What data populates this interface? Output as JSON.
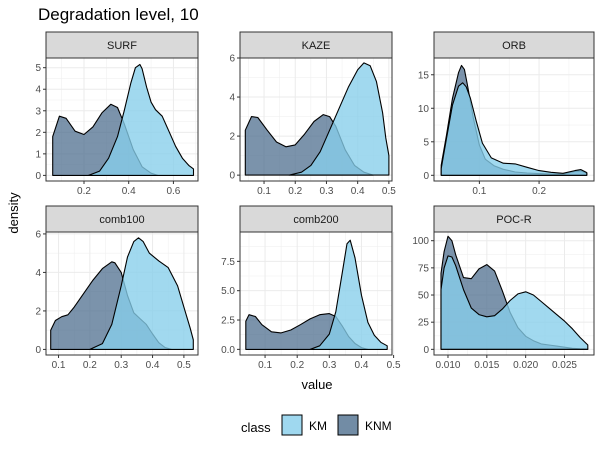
{
  "title": "Degradation level, 10",
  "chart_data": {
    "type": "area",
    "title": "Degradation level, 10",
    "xlabel": "value",
    "ylabel": "density",
    "grid": true,
    "legend": {
      "title": "class",
      "position": "bottom",
      "entries": [
        {
          "name": "KM",
          "color": "#87CEEB"
        },
        {
          "name": "KNM",
          "color": "#4F6F8F"
        }
      ]
    },
    "panels": [
      {
        "name": "SURF",
        "xlim": [
          0.03,
          0.71
        ],
        "ylim": [
          -0.26,
          5.45
        ],
        "xticks": [
          0.2,
          0.4,
          0.6
        ],
        "xtick_labels": [
          "0.2",
          "0.4",
          "0.6"
        ],
        "yticks": [
          0,
          1,
          2,
          3,
          4,
          5
        ],
        "ytick_labels": [
          "0",
          "1",
          "2",
          "3",
          "4",
          "5"
        ],
        "series": [
          {
            "name": "KNM",
            "x": [
              0.06,
              0.09,
              0.12,
              0.16,
              0.2,
              0.24,
              0.28,
              0.32,
              0.35,
              0.38,
              0.42,
              0.46,
              0.5,
              0.53
            ],
            "y": [
              1.8,
              2.75,
              2.65,
              2.05,
              1.9,
              2.25,
              2.9,
              3.3,
              3.15,
              2.4,
              1.2,
              0.4,
              0.1,
              0.0
            ]
          },
          {
            "name": "KM",
            "x": [
              0.22,
              0.27,
              0.31,
              0.35,
              0.38,
              0.41,
              0.43,
              0.45,
              0.46,
              0.48,
              0.5,
              0.52,
              0.55,
              0.58,
              0.61,
              0.64,
              0.67,
              0.69
            ],
            "y": [
              0.0,
              0.2,
              0.8,
              1.8,
              3.0,
              4.3,
              5.0,
              5.15,
              4.95,
              4.1,
              3.4,
              3.05,
              2.75,
              2.05,
              1.35,
              0.8,
              0.45,
              0.3
            ]
          }
        ]
      },
      {
        "name": "KAZE",
        "xlim": [
          0.023,
          0.51
        ],
        "ylim": [
          -0.3,
          6.0
        ],
        "xticks": [
          0.1,
          0.2,
          0.3,
          0.4,
          0.5
        ],
        "xtick_labels": [
          "0.1",
          "0.2",
          "0.3",
          "0.4",
          "0.5"
        ],
        "yticks": [
          0,
          2,
          4,
          6
        ],
        "ytick_labels": [
          "0",
          "2",
          "4",
          "6"
        ],
        "series": [
          {
            "name": "KNM",
            "x": [
              0.04,
              0.06,
              0.08,
              0.11,
              0.14,
              0.17,
              0.2,
              0.23,
              0.26,
              0.29,
              0.31,
              0.33,
              0.36,
              0.39,
              0.42,
              0.45
            ],
            "y": [
              2.3,
              3.0,
              2.95,
              2.3,
              1.7,
              1.45,
              1.55,
              2.1,
              2.75,
              3.1,
              3.0,
              2.5,
              1.3,
              0.5,
              0.15,
              0.0
            ]
          },
          {
            "name": "KM",
            "x": [
              0.18,
              0.22,
              0.25,
              0.28,
              0.31,
              0.34,
              0.37,
              0.4,
              0.42,
              0.44,
              0.46,
              0.48,
              0.49,
              0.5
            ],
            "y": [
              0.0,
              0.15,
              0.5,
              1.2,
              2.3,
              3.4,
              4.5,
              5.4,
              5.75,
              5.6,
              4.8,
              3.2,
              1.9,
              1.0
            ]
          }
        ]
      },
      {
        "name": "ORB",
        "xlim": [
          0.024,
          0.292
        ],
        "ylim": [
          -0.85,
          17.5
        ],
        "xticks": [
          0.1,
          0.2
        ],
        "xtick_labels": [
          "0.1",
          "0.2"
        ],
        "yticks": [
          0,
          5,
          10,
          15
        ],
        "ytick_labels": [
          "0",
          "5",
          "10",
          "15"
        ],
        "series": [
          {
            "name": "KNM",
            "x": [
              0.036,
              0.045,
              0.055,
              0.065,
              0.07,
              0.075,
              0.08,
              0.09,
              0.1,
              0.11,
              0.125,
              0.14,
              0.16,
              0.18,
              0.2,
              0.22,
              0.24,
              0.26,
              0.27,
              0.28
            ],
            "y": [
              1.5,
              6.0,
              11.5,
              15.3,
              16.4,
              15.8,
              13.5,
              8.5,
              4.5,
              2.4,
              1.4,
              0.9,
              0.5,
              0.35,
              0.25,
              0.2,
              0.15,
              0.6,
              0.65,
              0.3
            ]
          },
          {
            "name": "KM",
            "x": [
              0.036,
              0.045,
              0.055,
              0.065,
              0.072,
              0.078,
              0.085,
              0.095,
              0.105,
              0.12,
              0.14,
              0.16,
              0.18,
              0.2,
              0.22,
              0.24,
              0.26,
              0.27,
              0.28
            ],
            "y": [
              1.0,
              5.5,
              10.5,
              13.3,
              13.8,
              13.2,
              11.5,
              8.0,
              4.8,
              2.6,
              1.8,
              1.7,
              1.2,
              0.7,
              0.45,
              0.3,
              0.7,
              0.85,
              0.4
            ]
          }
        ]
      },
      {
        "name": "comb100",
        "xlim": [
          0.06,
          0.545
        ],
        "ylim": [
          -0.29,
          6.1
        ],
        "xticks": [
          0.1,
          0.2,
          0.3,
          0.4,
          0.5
        ],
        "xtick_labels": [
          "0.1",
          "0.2",
          "0.3",
          "0.4",
          "0.5"
        ],
        "yticks": [
          0,
          2,
          4,
          6
        ],
        "ytick_labels": [
          "0",
          "2",
          "4",
          "6"
        ],
        "series": [
          {
            "name": "KNM",
            "x": [
              0.075,
              0.09,
              0.11,
              0.13,
              0.15,
              0.18,
              0.21,
              0.24,
              0.27,
              0.28,
              0.3,
              0.32,
              0.34,
              0.36,
              0.38,
              0.4,
              0.42,
              0.44,
              0.46
            ],
            "y": [
              1.0,
              1.5,
              1.7,
              1.8,
              2.2,
              2.9,
              3.6,
              4.2,
              4.55,
              4.5,
              4.0,
              2.8,
              1.9,
              1.6,
              1.3,
              0.8,
              0.35,
              0.1,
              0.0
            ]
          },
          {
            "name": "KM",
            "x": [
              0.2,
              0.24,
              0.27,
              0.3,
              0.32,
              0.34,
              0.355,
              0.37,
              0.39,
              0.42,
              0.45,
              0.48,
              0.5,
              0.52,
              0.53
            ],
            "y": [
              0.0,
              0.3,
              1.3,
              3.3,
              4.8,
              5.6,
              5.8,
              5.6,
              5.0,
              4.6,
              4.25,
              3.3,
              2.2,
              1.1,
              0.5
            ]
          }
        ]
      },
      {
        "name": "comb200",
        "xlim": [
          0.022,
          0.495
        ],
        "ylim": [
          -0.48,
          10.0
        ],
        "xticks": [
          0.1,
          0.2,
          0.3,
          0.4,
          0.5
        ],
        "xtick_labels": [
          "0.1",
          "0.2",
          "0.3",
          "0.4",
          "0.5"
        ],
        "yticks": [
          0,
          2.5,
          5,
          7.5
        ],
        "ytick_labels": [
          "0.0",
          "2.5",
          "5.0",
          "7.5"
        ],
        "series": [
          {
            "name": "KNM",
            "x": [
              0.04,
              0.05,
              0.07,
              0.09,
              0.12,
              0.15,
              0.18,
              0.21,
              0.24,
              0.27,
              0.3,
              0.32,
              0.34,
              0.36,
              0.38,
              0.4,
              0.42
            ],
            "y": [
              2.4,
              2.95,
              2.8,
              2.1,
              1.5,
              1.4,
              1.65,
              2.1,
              2.6,
              2.95,
              3.05,
              2.8,
              2.0,
              1.1,
              0.5,
              0.15,
              0.0
            ]
          },
          {
            "name": "KM",
            "x": [
              0.24,
              0.27,
              0.3,
              0.32,
              0.34,
              0.355,
              0.365,
              0.38,
              0.4,
              0.42,
              0.44,
              0.46,
              0.48
            ],
            "y": [
              0.0,
              0.3,
              1.3,
              3.2,
              6.5,
              9.0,
              9.3,
              7.8,
              4.6,
              2.3,
              1.2,
              0.6,
              0.3
            ]
          }
        ]
      },
      {
        "name": "POC-R",
        "xlim": [
          0.0082,
          0.0288
        ],
        "ylim": [
          -5.2,
          108
        ],
        "xticks": [
          0.01,
          0.015,
          0.02,
          0.025
        ],
        "xtick_labels": [
          "0.010",
          "0.015",
          "0.020",
          "0.025"
        ],
        "yticks": [
          0,
          25,
          50,
          75,
          100
        ],
        "ytick_labels": [
          "0",
          "25",
          "50",
          "75",
          "100"
        ],
        "series": [
          {
            "name": "KNM",
            "x": [
              0.0091,
              0.0095,
              0.01,
              0.0105,
              0.011,
              0.012,
              0.013,
              0.014,
              0.015,
              0.016,
              0.017,
              0.018,
              0.019,
              0.02,
              0.021,
              0.022,
              0.023,
              0.024,
              0.025,
              0.026,
              0.027,
              0.028
            ],
            "y": [
              70,
              90,
              104,
              100,
              87,
              66,
              65,
              74,
              78,
              72,
              54,
              34,
              20,
              12,
              8,
              5,
              4,
              3,
              2,
              1,
              0.5,
              0.2
            ]
          },
          {
            "name": "KM",
            "x": [
              0.0091,
              0.0095,
              0.01,
              0.0105,
              0.011,
              0.012,
              0.013,
              0.014,
              0.015,
              0.016,
              0.017,
              0.018,
              0.019,
              0.02,
              0.021,
              0.022,
              0.023,
              0.024,
              0.025,
              0.026,
              0.027,
              0.028
            ],
            "y": [
              55,
              75,
              86,
              85,
              77,
              55,
              38,
              32,
              30,
              31,
              37,
              45,
              51,
              53,
              50,
              44,
              38,
              32,
              26,
              19,
              11,
              4
            ]
          }
        ]
      }
    ]
  }
}
